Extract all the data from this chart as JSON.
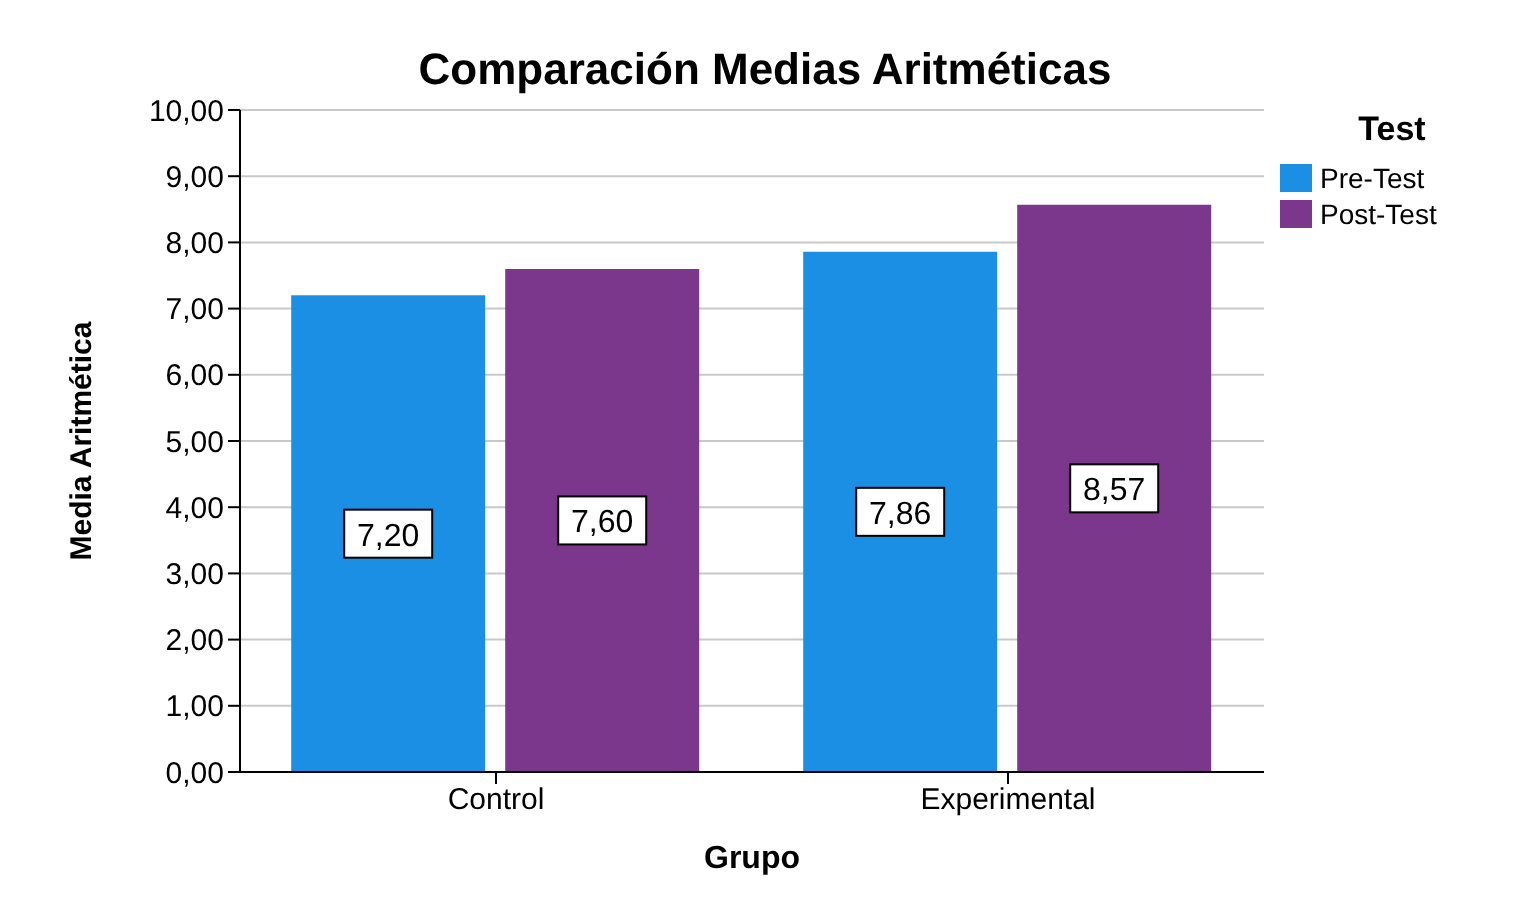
{
  "chart_data": {
    "type": "bar",
    "title": "Comparación Medias Aritméticas",
    "xlabel": "Grupo",
    "ylabel": "Media Aritmética",
    "legend_title": "Test",
    "categories": [
      "Control",
      "Experimental"
    ],
    "series": [
      {
        "name": "Pre-Test",
        "color": "#1b8fe4",
        "values": [
          7.2,
          7.86
        ],
        "value_labels": [
          "7,20",
          "7,86"
        ]
      },
      {
        "name": "Post-Test",
        "color": "#7a378b",
        "values": [
          7.6,
          8.57
        ],
        "value_labels": [
          "7,60",
          "8,57"
        ]
      }
    ],
    "ylim": [
      0,
      10
    ],
    "yticks": [
      {
        "value": 0,
        "label": "0,00"
      },
      {
        "value": 1,
        "label": "1,00"
      },
      {
        "value": 2,
        "label": "2,00"
      },
      {
        "value": 3,
        "label": "3,00"
      },
      {
        "value": 4,
        "label": "4,00"
      },
      {
        "value": 5,
        "label": "5,00"
      },
      {
        "value": 6,
        "label": "6,00"
      },
      {
        "value": 7,
        "label": "7,00"
      },
      {
        "value": 8,
        "label": "8,00"
      },
      {
        "value": 9,
        "label": "9,00"
      },
      {
        "value": 10,
        "label": "10,00"
      }
    ],
    "grid": "y",
    "legend": "top right"
  }
}
